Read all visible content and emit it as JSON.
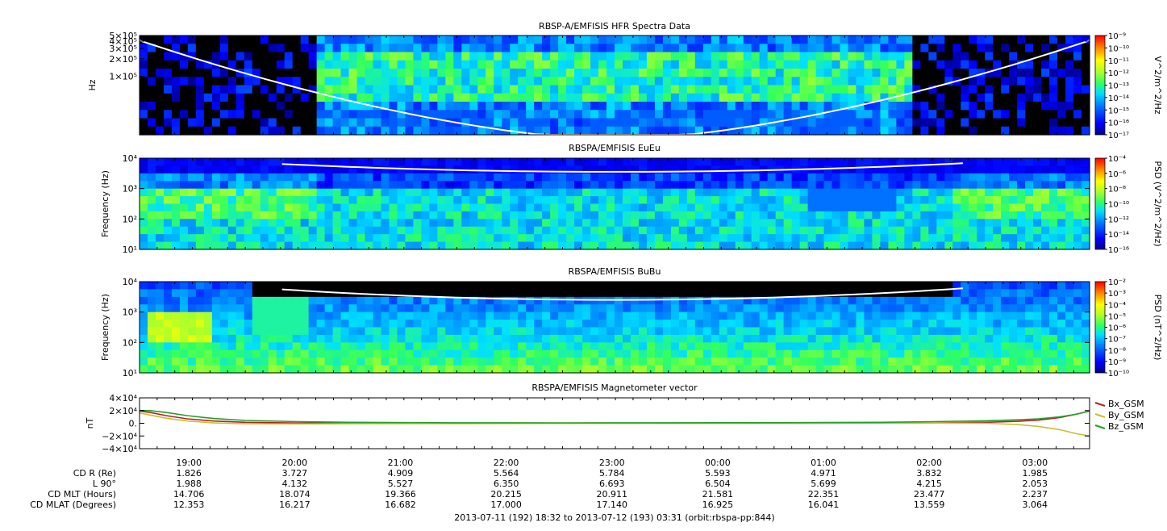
{
  "chart_data": [
    {
      "type": "heatmap",
      "title": "RBSP-A/EMFISIS  HFR Spectra Data",
      "ylabel": "Hz",
      "y_scale": "log",
      "y_tick_labels": [
        "5×10⁵",
        "4×10⁵",
        "3×10⁵",
        "2×10⁵",
        "1×10⁵"
      ],
      "y_tick_values": [
        500000,
        400000,
        300000,
        200000,
        100000
      ],
      "ylim": [
        10000,
        500000
      ],
      "colorbar_label": "V^2/m^2/Hz",
      "colorbar_tick_labels": [
        "10⁻⁹",
        "10⁻¹⁰",
        "10⁻¹¹",
        "10⁻¹²",
        "10⁻¹³",
        "10⁻¹⁴",
        "10⁻¹⁵",
        "10⁻¹⁶",
        "10⁻¹⁷"
      ],
      "colorbar_range": [
        -17,
        -9
      ]
    },
    {
      "type": "heatmap",
      "title": "RBSPA/EMFISIS  EuEu",
      "ylabel": "Frequency (Hz)",
      "y_scale": "log",
      "y_tick_labels": [
        "10⁴",
        "10³",
        "10²",
        "10¹"
      ],
      "y_tick_values": [
        10000,
        1000,
        100,
        10
      ],
      "ylim": [
        10,
        10000
      ],
      "colorbar_label": "PSD (V^2/m^2/Hz)",
      "colorbar_tick_labels": [
        "10⁻⁴",
        "10⁻⁶",
        "10⁻⁸",
        "10⁻¹⁰",
        "10⁻¹²",
        "10⁻¹⁴",
        "10⁻¹⁶"
      ],
      "colorbar_range": [
        -16,
        -4
      ]
    },
    {
      "type": "heatmap",
      "title": "RBSPA/EMFISIS  BuBu",
      "ylabel": "Frequency (Hz)",
      "y_scale": "log",
      "y_tick_labels": [
        "10⁴",
        "10³",
        "10²",
        "10¹"
      ],
      "y_tick_values": [
        10000,
        1000,
        100,
        10
      ],
      "ylim": [
        10,
        10000
      ],
      "colorbar_label": "PSD (nT^2/Hz)",
      "colorbar_tick_labels": [
        "10⁻²",
        "10⁻³",
        "10⁻⁴",
        "10⁻⁵",
        "10⁻⁶",
        "10⁻⁷",
        "10⁻⁸",
        "10⁻⁹",
        "10⁻¹⁰"
      ],
      "colorbar_range": [
        -10,
        -2
      ]
    },
    {
      "type": "line",
      "title": "RBSPA/EMFISIS  Magnetometer vector",
      "ylabel": "nT",
      "ylim": [
        -40000,
        40000
      ],
      "y_tick_labels": [
        "4×10⁴",
        "2×10⁴",
        "0.",
        "−2×10⁴",
        "−4×10⁴"
      ],
      "y_tick_values": [
        40000,
        20000,
        0,
        -20000,
        -40000
      ],
      "legend_position": "right",
      "x_hours": [
        0,
        0.1,
        0.25,
        0.45,
        0.7,
        1.0,
        1.5,
        2.0,
        3.0,
        4.0,
        5.0,
        6.0,
        7.0,
        7.5,
        8.0,
        8.3,
        8.5,
        8.7,
        8.85,
        8.98
      ],
      "series": [
        {
          "name": "Bx_GSM",
          "color": "#b22222",
          "values": [
            19000,
            17000,
            12000,
            7000,
            3500,
            1500,
            400,
            100,
            0,
            0,
            0,
            0,
            200,
            600,
            1500,
            3000,
            5000,
            9000,
            14000,
            19000
          ]
        },
        {
          "name": "By_GSM",
          "color": "#c8c032",
          "values": [
            16000,
            13000,
            8000,
            3500,
            500,
            -800,
            -1000,
            -800,
            -500,
            -300,
            0,
            300,
            500,
            500,
            0,
            -2000,
            -5000,
            -10000,
            -16000,
            -20000
          ]
        },
        {
          "name": "Bz_GSM",
          "color": "#22a02a",
          "values": [
            20000,
            20000,
            17000,
            12000,
            7500,
            4500,
            2500,
            1500,
            800,
            600,
            700,
            900,
            1500,
            2500,
            4000,
            5500,
            7000,
            10000,
            14000,
            19000
          ]
        }
      ]
    }
  ],
  "x_axis": {
    "tick_labels": [
      "19:00",
      "20:00",
      "21:00",
      "22:00",
      "23:00",
      "00:00",
      "01:00",
      "02:00",
      "03:00"
    ],
    "tick_hours": [
      0.4667,
      1.4667,
      2.4667,
      3.4667,
      4.4667,
      5.4667,
      6.4667,
      7.4667,
      8.4667
    ],
    "range_hours": [
      0,
      8.9833
    ]
  },
  "ephemeris": [
    {
      "label": "CD R (Re)",
      "values": [
        "1.826",
        "3.727",
        "4.909",
        "5.564",
        "5.784",
        "5.593",
        "4.971",
        "3.832",
        "1.985"
      ]
    },
    {
      "label": "L 90°",
      "values": [
        "1.988",
        "4.132",
        "5.527",
        "6.350",
        "6.693",
        "6.504",
        "5.699",
        "4.215",
        "2.053"
      ]
    },
    {
      "label": "CD MLT (Hours)",
      "values": [
        "14.706",
        "18.074",
        "19.366",
        "20.215",
        "20.911",
        "21.581",
        "22.351",
        "23.477",
        "2.237"
      ]
    },
    {
      "label": "CD MLAT (Degrees)",
      "values": [
        "12.353",
        "16.217",
        "16.682",
        "17.000",
        "17.140",
        "16.925",
        "16.041",
        "13.559",
        "3.064"
      ]
    }
  ],
  "footer": "2013-07-11 (192) 18:32 to 2013-07-12 (193) 03:31 (orbit:rbspa-pp:844)"
}
